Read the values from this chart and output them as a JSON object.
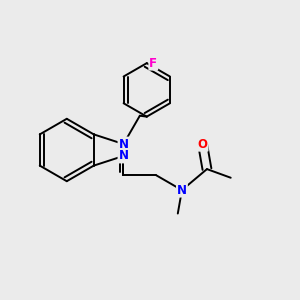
{
  "background_color": "#ebebeb",
  "bond_color": "#000000",
  "N_color": "#0000ff",
  "O_color": "#ff0000",
  "F_color": "#ff00cc",
  "line_width": 1.4,
  "font_size_atom": 8.5,
  "fig_width": 3.0,
  "fig_height": 3.0,
  "dpi": 100,
  "xlim": [
    0.0,
    1.0
  ],
  "ylim": [
    0.0,
    1.0
  ]
}
